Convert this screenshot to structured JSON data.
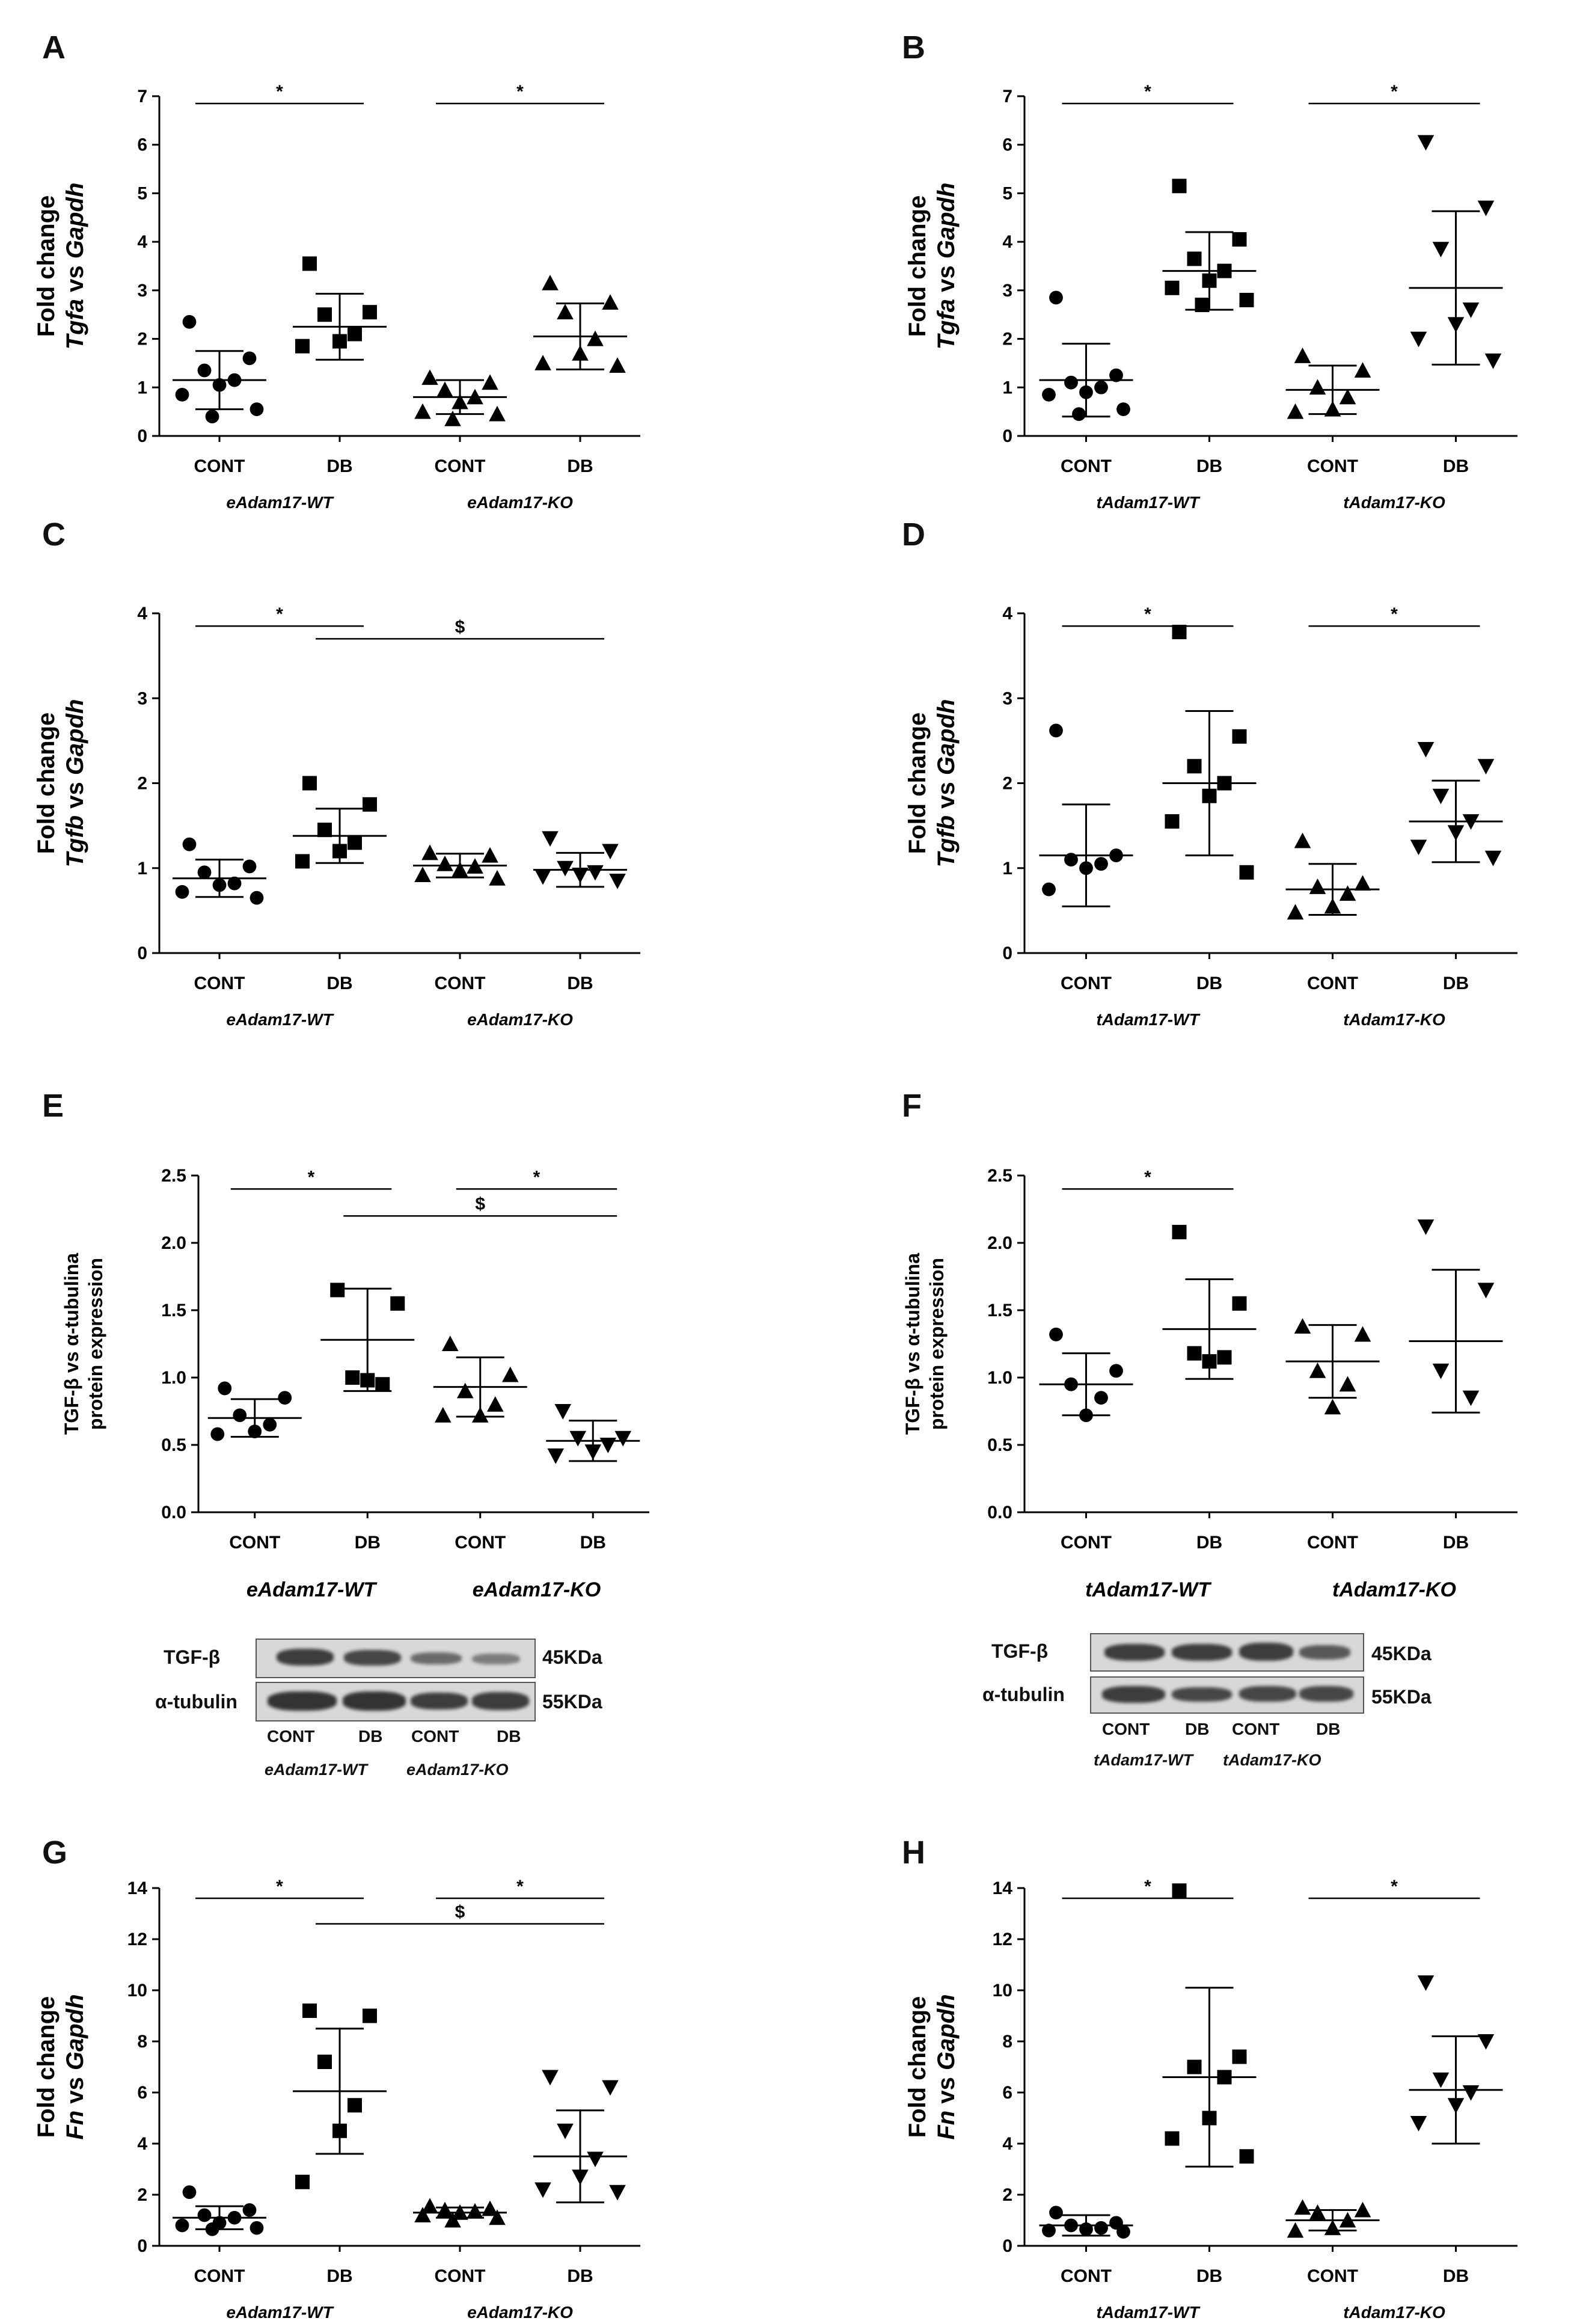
{
  "chart_data": [
    {
      "id": "A",
      "type": "scatter",
      "ylabel_line1": "Fold change",
      "ylabel_gene": "Tgfa",
      "ylabel_vs": " vs ",
      "ylabel_ref": "Gapdh",
      "ylim": [
        0,
        7
      ],
      "yticks": [
        "0",
        "1",
        "2",
        "3",
        "4",
        "5",
        "6",
        "7"
      ],
      "categories": [
        "CONT",
        "DB",
        "CONT",
        "DB"
      ],
      "groups": [
        "eAdam17-WT",
        "eAdam17-KO"
      ],
      "markers": [
        "circle",
        "square",
        "triangle-up",
        "triangle-up"
      ],
      "points": [
        [
          2.35,
          1.6,
          1.35,
          1.15,
          1.05,
          0.85,
          0.55,
          0.4
        ],
        [
          3.55,
          2.55,
          2.5,
          2.1,
          1.95,
          1.85
        ],
        [
          1.2,
          1.1,
          0.95,
          0.8,
          0.7,
          0.5,
          0.45,
          0.35
        ],
        [
          3.15,
          2.75,
          2.55,
          2.0,
          1.7,
          1.5,
          1.45
        ]
      ],
      "mean": [
        1.15,
        2.25,
        0.8,
        2.05
      ],
      "sd": [
        0.6,
        0.68,
        0.35,
        0.68
      ],
      "sig": [
        {
          "from": 0,
          "to": 1,
          "y": 6.85,
          "label": "*"
        },
        {
          "from": 2,
          "to": 3,
          "y": 6.85,
          "label": "*"
        }
      ]
    },
    {
      "id": "B",
      "type": "scatter",
      "ylabel_line1": "Fold change",
      "ylabel_gene": "Tgfa",
      "ylabel_vs": " vs ",
      "ylabel_ref": "Gapdh",
      "ylim": [
        0,
        7
      ],
      "yticks": [
        "0",
        "1",
        "2",
        "3",
        "4",
        "5",
        "6",
        "7"
      ],
      "categories": [
        "CONT",
        "DB",
        "CONT",
        "DB"
      ],
      "groups": [
        "tAdam17-WT",
        "tAdam17-KO"
      ],
      "markers": [
        "circle",
        "square",
        "triangle-up",
        "triangle-down"
      ],
      "points": [
        [
          2.85,
          1.25,
          1.1,
          1.0,
          0.9,
          0.85,
          0.55,
          0.45
        ],
        [
          5.15,
          4.05,
          3.65,
          3.4,
          3.2,
          3.05,
          2.8,
          2.7
        ],
        [
          1.65,
          1.35,
          1.0,
          0.8,
          0.55,
          0.5
        ],
        [
          6.05,
          4.7,
          3.85,
          2.6,
          2.3,
          2.0,
          1.55
        ]
      ],
      "mean": [
        1.15,
        3.4,
        0.95,
        3.05
      ],
      "sd": [
        0.75,
        0.8,
        0.5,
        1.58
      ],
      "sig": [
        {
          "from": 0,
          "to": 1,
          "y": 6.85,
          "label": "*"
        },
        {
          "from": 2,
          "to": 3,
          "y": 6.85,
          "label": "*"
        }
      ]
    },
    {
      "id": "C",
      "type": "scatter",
      "ylabel_line1": "Fold change",
      "ylabel_gene": "Tgfb",
      "ylabel_vs": " vs ",
      "ylabel_ref": "Gapdh",
      "ylim": [
        0,
        4
      ],
      "yticks": [
        "0",
        "1",
        "2",
        "3",
        "4"
      ],
      "categories": [
        "CONT",
        "DB",
        "CONT",
        "DB"
      ],
      "groups": [
        "eAdam17-WT",
        "eAdam17-KO"
      ],
      "markers": [
        "circle",
        "square",
        "triangle-up",
        "triangle-down"
      ],
      "points": [
        [
          1.28,
          1.02,
          0.95,
          0.82,
          0.8,
          0.72,
          0.65
        ],
        [
          2.0,
          1.75,
          1.45,
          1.3,
          1.2,
          1.08
        ],
        [
          1.18,
          1.15,
          1.05,
          1.02,
          0.98,
          0.92,
          0.88
        ],
        [
          1.35,
          1.2,
          1.0,
          0.95,
          0.92,
          0.9,
          0.85
        ]
      ],
      "mean": [
        0.88,
        1.38,
        1.03,
        0.98
      ],
      "sd": [
        0.22,
        0.32,
        0.14,
        0.2
      ],
      "sig": [
        {
          "from": 0,
          "to": 1,
          "y": 3.85,
          "label": "*"
        },
        {
          "from": 1,
          "to": 3,
          "y": 3.7,
          "label": "$"
        }
      ]
    },
    {
      "id": "D",
      "type": "scatter",
      "ylabel_line1": "Fold change",
      "ylabel_gene": "Tgfb",
      "ylabel_vs": " vs ",
      "ylabel_ref": "Gapdh",
      "ylim": [
        0,
        4
      ],
      "yticks": [
        "0",
        "1",
        "2",
        "3",
        "4"
      ],
      "categories": [
        "CONT",
        "DB",
        "CONT",
        "DB"
      ],
      "groups": [
        "tAdam17-WT",
        "tAdam17-KO"
      ],
      "markers": [
        "circle",
        "square",
        "triangle-up",
        "triangle-down"
      ],
      "points": [
        [
          2.62,
          1.15,
          1.1,
          1.05,
          1.0,
          0.75
        ],
        [
          3.78,
          2.55,
          2.2,
          2.0,
          1.85,
          1.55,
          0.95
        ],
        [
          1.32,
          0.82,
          0.78,
          0.7,
          0.55,
          0.48
        ],
        [
          2.4,
          2.2,
          1.85,
          1.55,
          1.42,
          1.25,
          1.12
        ]
      ],
      "mean": [
        1.15,
        2.0,
        0.75,
        1.55
      ],
      "sd": [
        0.6,
        0.85,
        0.3,
        0.48
      ],
      "sig": [
        {
          "from": 0,
          "to": 1,
          "y": 3.85,
          "label": "*"
        },
        {
          "from": 2,
          "to": 3,
          "y": 3.85,
          "label": "*"
        }
      ]
    },
    {
      "id": "E",
      "type": "scatter",
      "ylabel_line1": "TGF-β vs α-tubulina",
      "ylabel_line2": "protein expression",
      "ylim": [
        0,
        2.5
      ],
      "yticks": [
        "0.0",
        "0.5",
        "1.0",
        "1.5",
        "2.0",
        "2.5"
      ],
      "categories": [
        "CONT",
        "DB",
        "CONT",
        "DB"
      ],
      "groups": [
        "eAdam17-WT",
        "eAdam17-KO"
      ],
      "markers": [
        "circle",
        "square",
        "triangle-up",
        "triangle-down"
      ],
      "points": [
        [
          0.92,
          0.85,
          0.72,
          0.65,
          0.6,
          0.58
        ],
        [
          1.65,
          1.55,
          1.0,
          0.95,
          0.98
        ],
        [
          1.25,
          1.02,
          0.9,
          0.8,
          0.72,
          0.72
        ],
        [
          0.75,
          0.55,
          0.55,
          0.5,
          0.45,
          0.42
        ]
      ],
      "mean": [
        0.7,
        1.28,
        0.93,
        0.53
      ],
      "sd": [
        0.14,
        0.38,
        0.22,
        0.15
      ],
      "sig": [
        {
          "from": 0,
          "to": 1,
          "y": 2.4,
          "label": "*"
        },
        {
          "from": 2,
          "to": 3,
          "y": 2.4,
          "label": "*"
        },
        {
          "from": 1,
          "to": 3,
          "y": 2.2,
          "label": "$"
        }
      ]
    },
    {
      "id": "F",
      "type": "scatter",
      "ylabel_line1": "TGF-β vs α-tubulina",
      "ylabel_line2": "protein expression",
      "ylim": [
        0,
        2.5
      ],
      "yticks": [
        "0.0",
        "0.5",
        "1.0",
        "1.5",
        "2.0",
        "2.5"
      ],
      "categories": [
        "CONT",
        "DB",
        "CONT",
        "DB"
      ],
      "groups": [
        "tAdam17-WT",
        "tAdam17-KO"
      ],
      "markers": [
        "circle",
        "square",
        "triangle-up",
        "triangle-down"
      ],
      "points": [
        [
          1.32,
          1.05,
          0.95,
          0.85,
          0.72
        ],
        [
          2.08,
          1.55,
          1.18,
          1.15,
          1.12
        ],
        [
          1.38,
          1.32,
          1.05,
          0.95,
          0.78
        ],
        [
          2.12,
          1.65,
          1.05,
          0.85
        ]
      ],
      "mean": [
        0.95,
        1.36,
        1.12,
        1.27
      ],
      "sd": [
        0.23,
        0.37,
        0.27,
        0.53
      ],
      "sig": [
        {
          "from": 0,
          "to": 1,
          "y": 2.4,
          "label": "*"
        }
      ]
    },
    {
      "id": "G",
      "type": "scatter",
      "ylabel_line1": "Fold change",
      "ylabel_gene": "Fn",
      "ylabel_vs": " vs ",
      "ylabel_ref": "Gapdh",
      "ylim": [
        0,
        14
      ],
      "yticks": [
        "0",
        "2",
        "4",
        "6",
        "8",
        "10",
        "12",
        "14"
      ],
      "categories": [
        "CONT",
        "DB",
        "CONT",
        "DB"
      ],
      "groups": [
        "eAdam17-WT",
        "eAdam17-KO"
      ],
      "markers": [
        "circle",
        "square",
        "triangle-up",
        "triangle-down"
      ],
      "points": [
        [
          2.1,
          1.4,
          1.2,
          1.1,
          0.9,
          0.8,
          0.7,
          0.65
        ],
        [
          9.2,
          9.0,
          7.2,
          5.5,
          4.5,
          2.5
        ],
        [
          1.55,
          1.45,
          1.4,
          1.35,
          1.3,
          1.2,
          1.1,
          1.0
        ],
        [
          6.6,
          6.2,
          4.5,
          3.4,
          2.7,
          2.2,
          2.1
        ]
      ],
      "mean": [
        1.1,
        6.05,
        1.3,
        3.5
      ],
      "sd": [
        0.45,
        2.45,
        0.2,
        1.8
      ],
      "sig": [
        {
          "from": 0,
          "to": 1,
          "y": 13.6,
          "label": "*"
        },
        {
          "from": 2,
          "to": 3,
          "y": 13.6,
          "label": "*"
        },
        {
          "from": 1,
          "to": 3,
          "y": 12.6,
          "label": "$"
        }
      ]
    },
    {
      "id": "H",
      "type": "scatter",
      "ylabel_line1": "Fold change",
      "ylabel_gene": "Fn",
      "ylabel_vs": " vs ",
      "ylabel_ref": "Gapdh",
      "ylim": [
        0,
        14
      ],
      "yticks": [
        "0",
        "2",
        "4",
        "6",
        "8",
        "10",
        "12",
        "14"
      ],
      "categories": [
        "CONT",
        "DB",
        "CONT",
        "DB"
      ],
      "groups": [
        "tAdam17-WT",
        "tAdam17-KO"
      ],
      "markers": [
        "circle",
        "square",
        "triangle-up",
        "triangle-down"
      ],
      "points": [
        [
          1.3,
          0.9,
          0.8,
          0.7,
          0.65,
          0.6,
          0.55
        ],
        [
          13.9,
          7.4,
          7.0,
          6.6,
          5.0,
          4.2,
          3.5
        ],
        [
          1.5,
          1.4,
          1.3,
          1.0,
          0.7,
          0.6
        ],
        [
          10.3,
          8.0,
          6.5,
          6.0,
          5.5,
          4.8
        ]
      ],
      "mean": [
        0.8,
        6.6,
        1.0,
        6.1
      ],
      "sd": [
        0.4,
        3.5,
        0.4,
        2.1
      ],
      "sig": [
        {
          "from": 0,
          "to": 1,
          "y": 13.6,
          "label": "*"
        },
        {
          "from": 2,
          "to": 3,
          "y": 13.6,
          "label": "*"
        }
      ]
    }
  ],
  "blots": [
    {
      "id": "E-blot",
      "row_labels": [
        "TGF-β",
        "α-tubulin"
      ],
      "kda": [
        "45KDa",
        "55KDa"
      ],
      "lanes": [
        "CONT",
        "DB",
        "CONT",
        "DB"
      ],
      "groups": [
        "eAdam17-WT",
        "eAdam17-KO"
      ]
    },
    {
      "id": "F-blot",
      "row_labels": [
        "TGF-β",
        "α-tubulin"
      ],
      "kda": [
        "45KDa",
        "55KDa"
      ],
      "lanes": [
        "CONT",
        "DB",
        "CONT",
        "DB"
      ],
      "groups": [
        "tAdam17-WT",
        "tAdam17-KO"
      ]
    }
  ]
}
